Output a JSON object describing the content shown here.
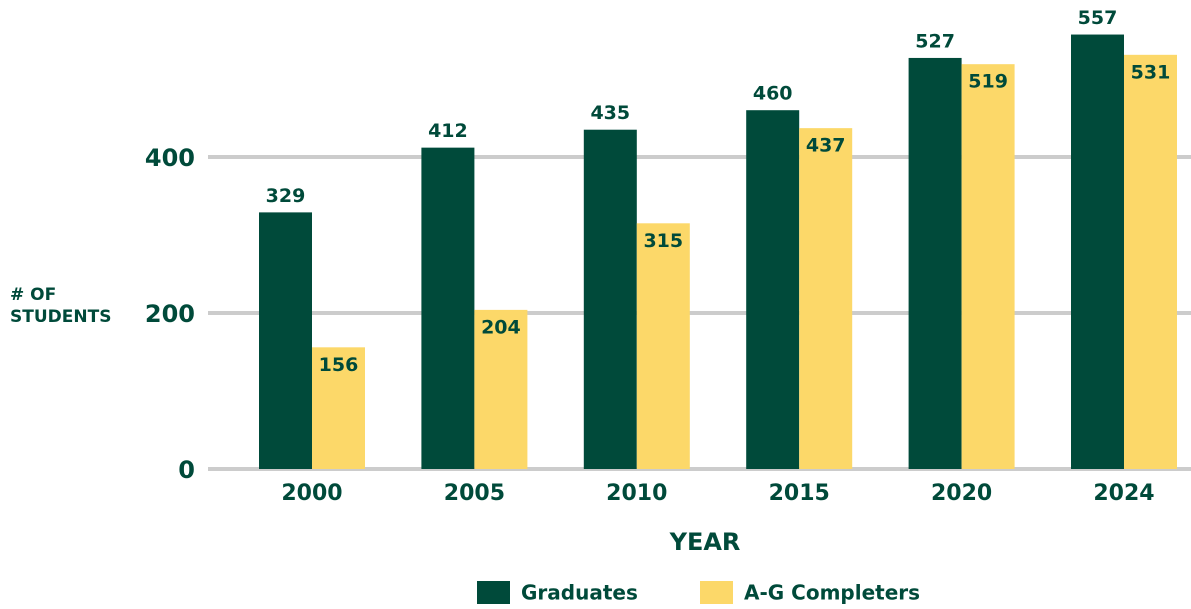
{
  "chart_data": {
    "type": "bar",
    "x_label": "YEAR",
    "y_label": "# OF STUDENTS",
    "categories": [
      "2000",
      "2005",
      "2010",
      "2015",
      "2020",
      "2024"
    ],
    "series": [
      {
        "name": "Graduates",
        "color": "#004a3a",
        "values": [
          329,
          412,
          435,
          460,
          527,
          557
        ]
      },
      {
        "name": "A-G Completers",
        "color": "#fcd869",
        "values": [
          156,
          204,
          315,
          437,
          519,
          531
        ]
      }
    ],
    "ylim": [
      0,
      600
    ],
    "yticks": [
      0,
      200,
      400
    ],
    "grid": true,
    "legend": "bottom"
  }
}
